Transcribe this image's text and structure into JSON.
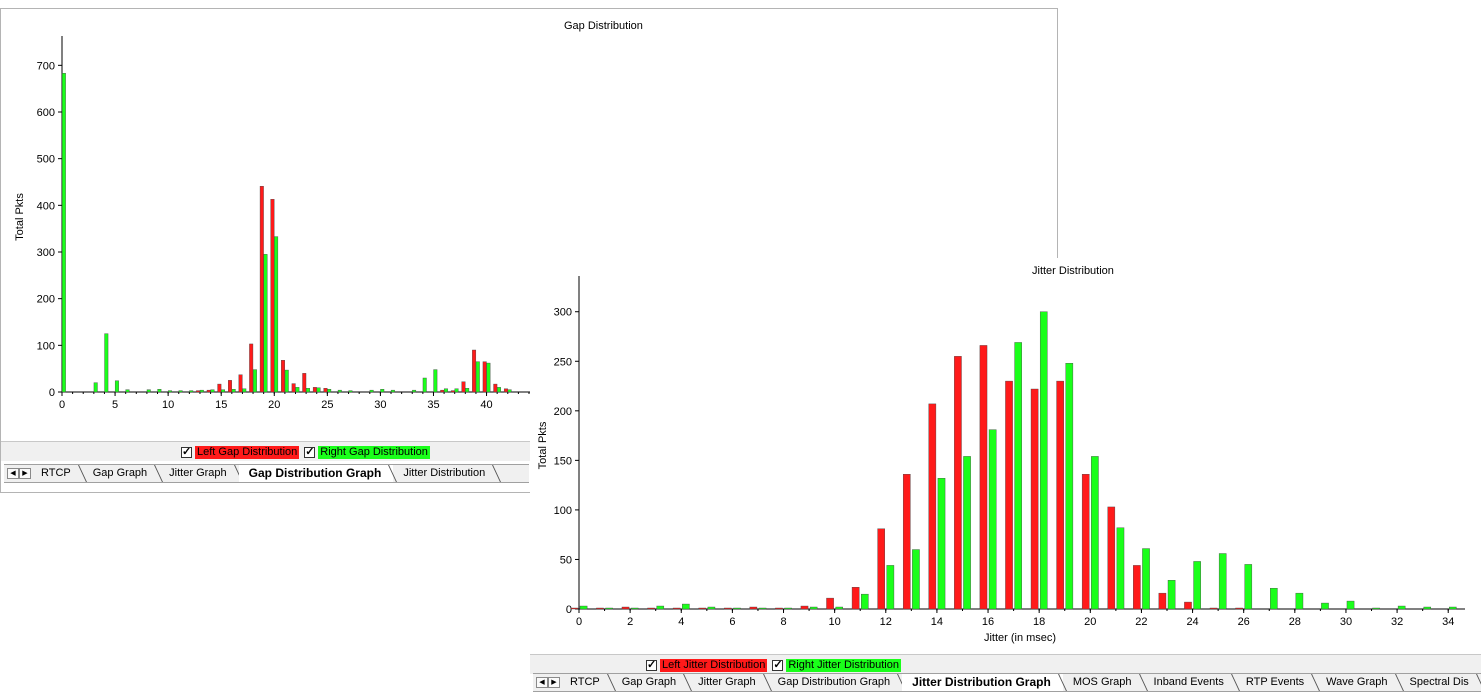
{
  "gap_window": {
    "title": "Gap Distribution",
    "legend": [
      {
        "label": "Left Gap Distribution",
        "color": "#ff1a1a",
        "checked": true
      },
      {
        "label": "Right Gap Distribution",
        "color": "#1aff1a",
        "checked": true
      }
    ],
    "tabs": [
      "RTCP",
      "Gap Graph",
      "Jitter Graph",
      "Gap Distribution Graph",
      "Jitter Distribution"
    ],
    "active_tab": "Gap Distribution Graph"
  },
  "jitter_window": {
    "title": "Jitter Distribution",
    "legend": [
      {
        "label": "Left Jitter Distribution",
        "color": "#ff1a1a",
        "checked": true
      },
      {
        "label": "Right Jitter Distribution",
        "color": "#1aff1a",
        "checked": true
      }
    ],
    "tabs": [
      "RTCP",
      "Gap Graph",
      "Jitter Graph",
      "Gap Distribution Graph",
      "Jitter Distribution Graph",
      "MOS Graph",
      "Inband Events",
      "RTP Events",
      "Wave Graph",
      "Spectral Dis"
    ],
    "active_tab": "Jitter Distribution Graph"
  },
  "nav": {
    "prev": "◀",
    "next": "▶"
  },
  "chart_data": [
    {
      "type": "bar",
      "title": "Gap Distribution",
      "xlabel": "",
      "ylabel": "Total Pkts",
      "xlim": [
        0,
        44
      ],
      "ylim": [
        0,
        750
      ],
      "xticks": [
        0,
        5,
        10,
        15,
        20,
        25,
        30,
        35,
        40
      ],
      "yticks": [
        0,
        100,
        200,
        300,
        400,
        500,
        600,
        700
      ],
      "series": [
        {
          "name": "Left Gap Distribution",
          "color": "#ff1a1a",
          "x": [
            13,
            14,
            15,
            16,
            17,
            18,
            19,
            20,
            21,
            22,
            23,
            24,
            25,
            36,
            37,
            38,
            39,
            40,
            41,
            42
          ],
          "values": [
            3,
            4,
            17,
            25,
            37,
            103,
            441,
            413,
            68,
            18,
            40,
            10,
            8,
            4,
            3,
            22,
            90,
            65,
            17,
            7
          ]
        },
        {
          "name": "Right Gap Distribution",
          "color": "#1aff1a",
          "x": [
            0,
            3,
            4,
            5,
            6,
            8,
            9,
            10,
            11,
            12,
            13,
            14,
            15,
            16,
            17,
            18,
            19,
            20,
            21,
            22,
            23,
            24,
            25,
            26,
            27,
            29,
            30,
            31,
            33,
            34,
            35,
            36,
            37,
            38,
            39,
            40,
            41,
            42
          ],
          "values": [
            683,
            20,
            125,
            24,
            5,
            5,
            6,
            3,
            3,
            3,
            4,
            5,
            5,
            6,
            7,
            48,
            295,
            333,
            47,
            10,
            8,
            9,
            6,
            4,
            3,
            4,
            6,
            4,
            4,
            30,
            48,
            7,
            7,
            8,
            65,
            62,
            10,
            5
          ]
        }
      ]
    },
    {
      "type": "bar",
      "title": "Jitter Distribution",
      "xlabel": "Jitter (in msec)",
      "ylabel": "Total Pkts",
      "xlim": [
        0,
        34.5
      ],
      "ylim": [
        0,
        330
      ],
      "xticks": [
        0,
        2,
        4,
        6,
        8,
        10,
        12,
        14,
        16,
        18,
        20,
        22,
        24,
        26,
        28,
        30,
        32,
        34
      ],
      "yticks": [
        0,
        50,
        100,
        150,
        200,
        250,
        300
      ],
      "series": [
        {
          "name": "Left Jitter Distribution",
          "color": "#ff1a1a",
          "x": [
            0,
            1,
            2,
            3,
            4,
            5,
            6,
            7,
            8,
            9,
            10,
            11,
            12,
            13,
            14,
            15,
            16,
            17,
            18,
            19,
            20,
            21,
            22,
            23,
            24,
            25,
            26,
            27,
            28,
            29,
            30,
            31,
            32,
            33,
            34
          ],
          "values": [
            1,
            1,
            2,
            1,
            1,
            1,
            1,
            2,
            1,
            3,
            11,
            22,
            81,
            136,
            207,
            255,
            266,
            230,
            222,
            230,
            136,
            103,
            44,
            16,
            7,
            1,
            1,
            0,
            0,
            0,
            0,
            0,
            0,
            0,
            0
          ]
        },
        {
          "name": "Right Jitter Distribution",
          "color": "#1aff1a",
          "x": [
            0,
            1,
            2,
            3,
            4,
            5,
            6,
            7,
            8,
            9,
            10,
            11,
            12,
            13,
            14,
            15,
            16,
            17,
            18,
            19,
            20,
            21,
            22,
            23,
            24,
            25,
            26,
            27,
            28,
            29,
            30,
            31,
            32,
            33,
            34
          ],
          "values": [
            3,
            1,
            1,
            3,
            5,
            2,
            1,
            1,
            1,
            2,
            2,
            15,
            44,
            60,
            132,
            154,
            181,
            269,
            300,
            248,
            154,
            82,
            61,
            29,
            48,
            56,
            45,
            21,
            16,
            6,
            8,
            1,
            3,
            2,
            2
          ]
        }
      ]
    }
  ]
}
